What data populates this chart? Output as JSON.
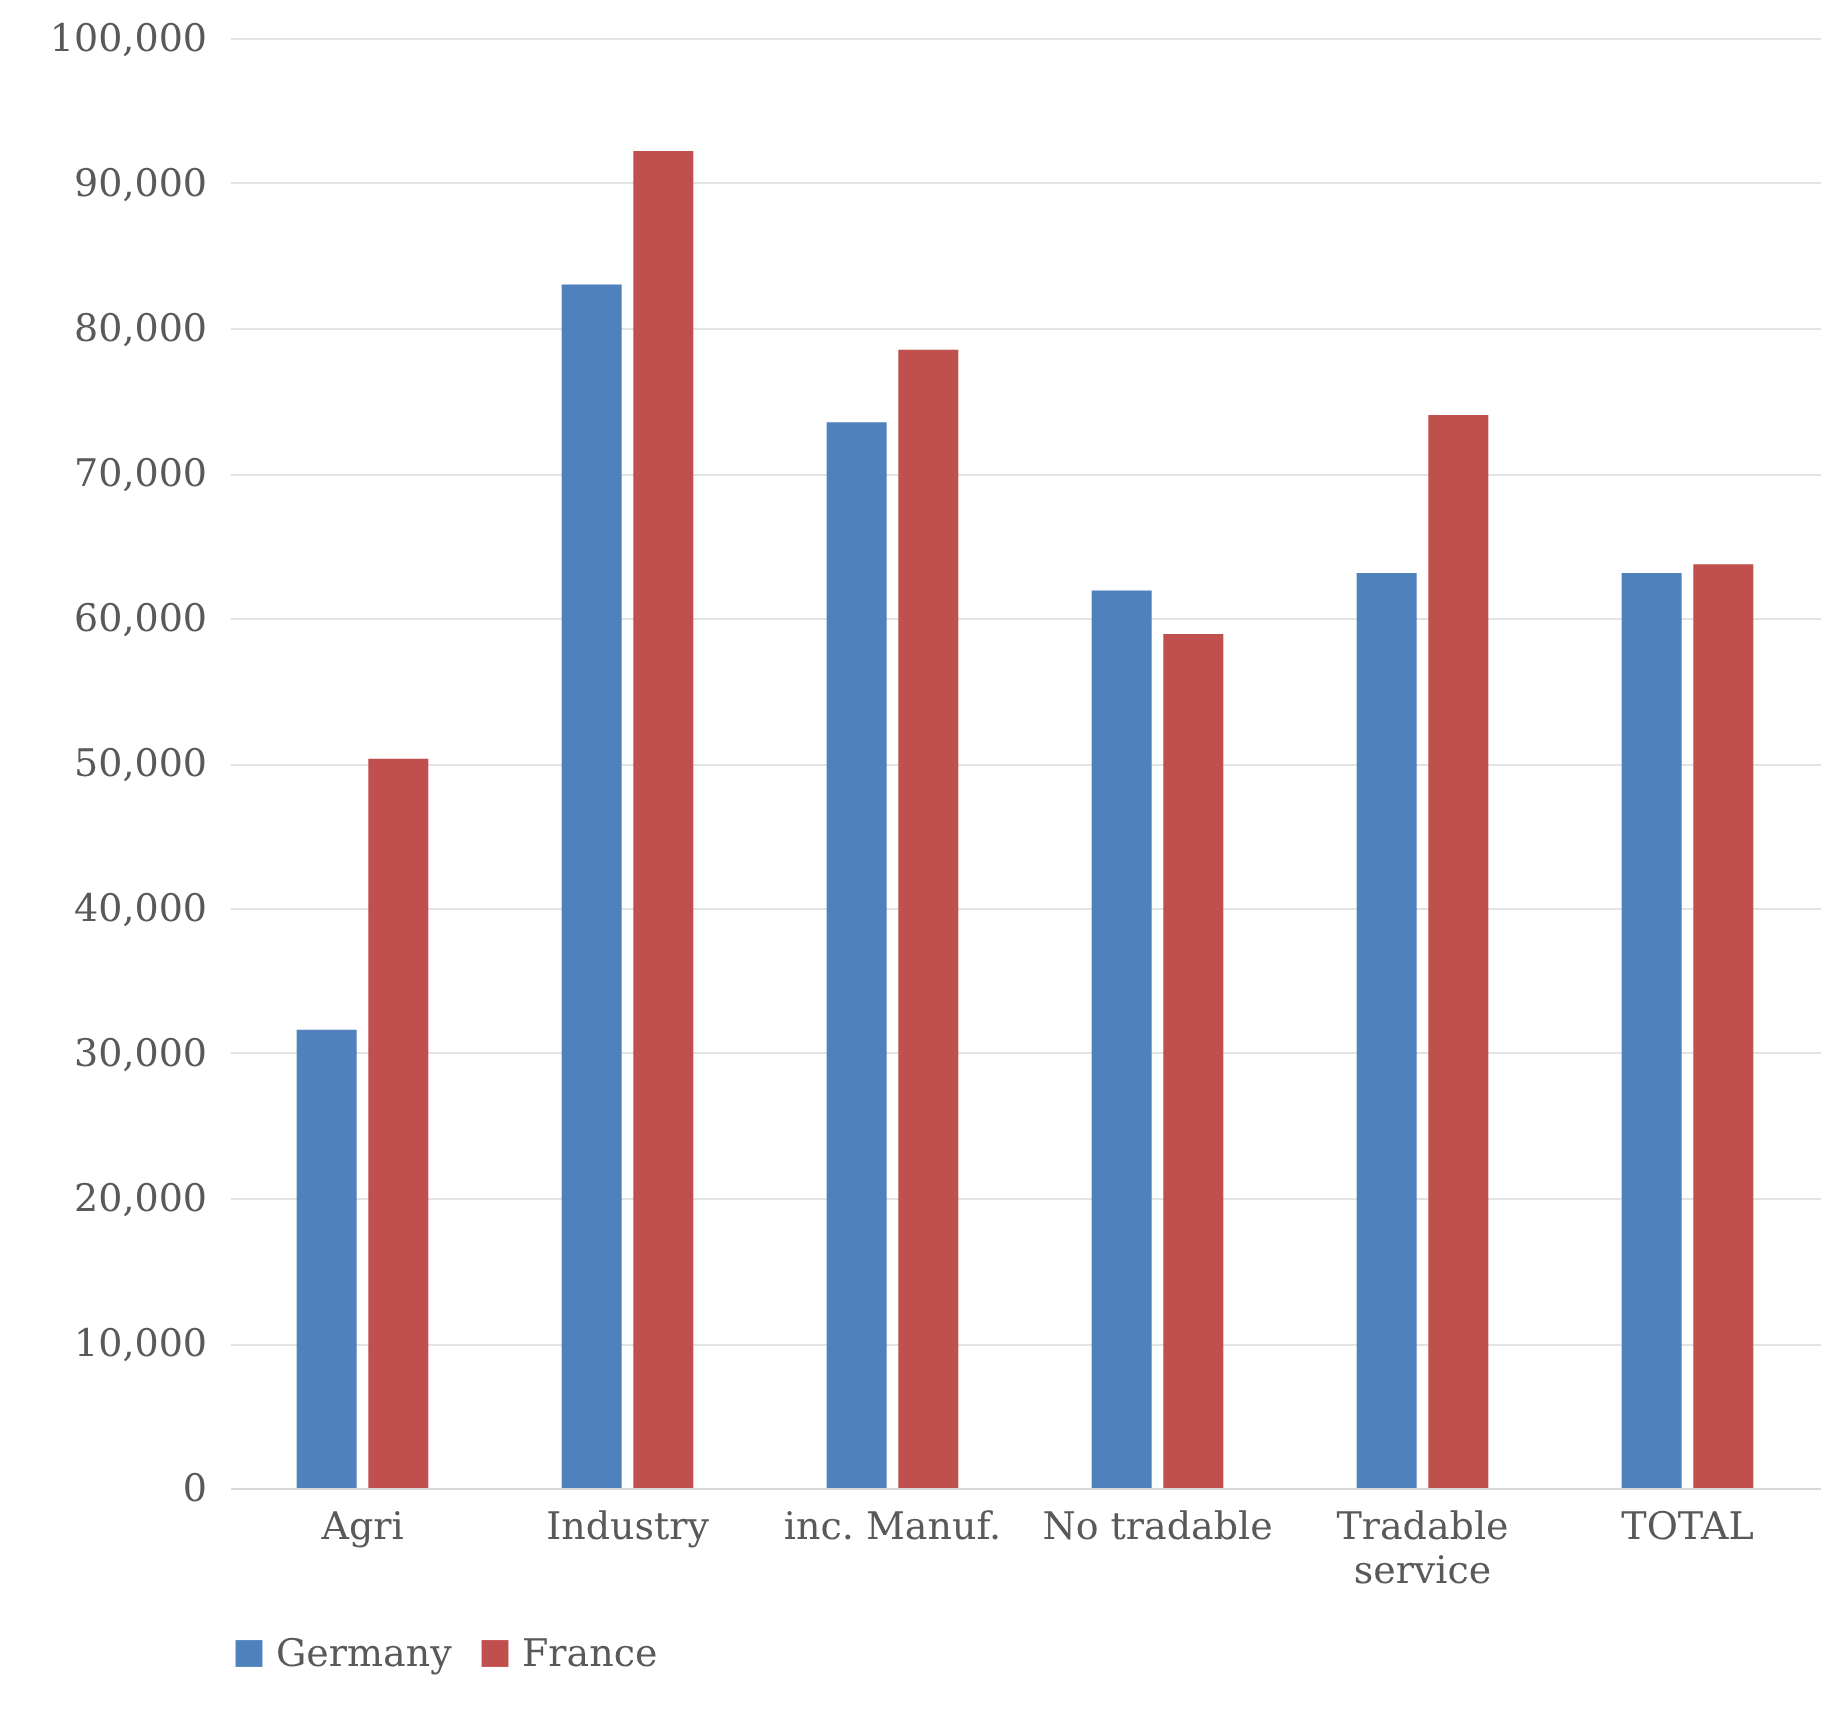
{
  "chart_data": {
    "type": "bar",
    "categories": [
      "Agri",
      "Industry",
      "inc. Manuf.",
      "No tradable",
      "Tradable service",
      "TOTAL"
    ],
    "series": [
      {
        "name": "Germany",
        "color": "#4f81bd",
        "values": [
          31600,
          83000,
          73500,
          61900,
          63100,
          63100
        ]
      },
      {
        "name": "France",
        "color": "#c0504d",
        "values": [
          50300,
          92200,
          78500,
          58900,
          74000,
          63700
        ]
      }
    ],
    "ylim": [
      0,
      100000
    ],
    "yticks": [
      0,
      {
        "value": 10000,
        "label": "10,000"
      },
      {
        "value": 20000,
        "label": "20,000"
      },
      {
        "value": 30000,
        "label": "30,000"
      },
      {
        "value": 40000,
        "label": "40,000"
      },
      {
        "value": 50000,
        "label": "50,000"
      },
      {
        "value": 60000,
        "label": "60,000"
      },
      {
        "value": 70000,
        "label": "70,000"
      },
      {
        "value": 80000,
        "label": "80,000"
      },
      {
        "value": 90000,
        "label": "90,000"
      },
      {
        "value": 100000,
        "label": "100,000"
      }
    ],
    "grid": "y",
    "legend": "bottom"
  }
}
